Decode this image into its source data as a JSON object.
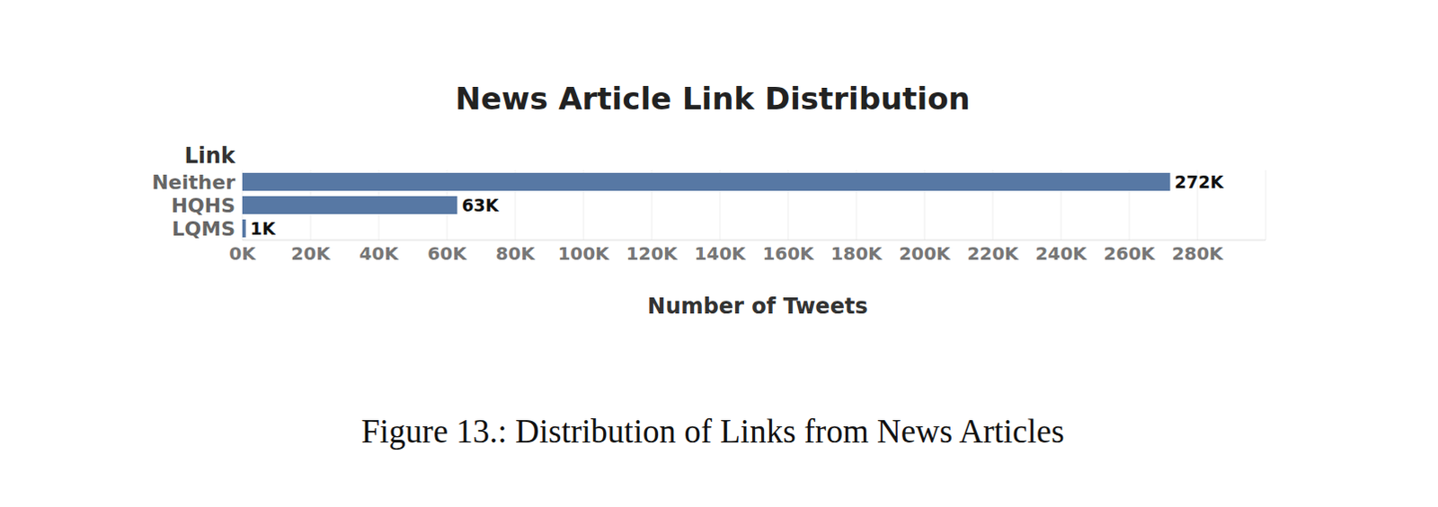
{
  "chart_data": {
    "type": "bar",
    "title": "News Article Link Distribution",
    "y_label": "Link",
    "x_label": "Number of Tweets",
    "caption": "Figure 13.: Distribution of Links from News Articles",
    "orientation": "horizontal",
    "categories": [
      "Neither",
      "HQHS",
      "LQMS"
    ],
    "values": [
      272000,
      63000,
      1000
    ],
    "value_labels": [
      "272K",
      "63K",
      "1K"
    ],
    "data_labels": true,
    "color": "#5778a4",
    "xlim": [
      0,
      300000
    ],
    "xticks": [
      {
        "value": 0,
        "label": "0K"
      },
      {
        "value": 20000,
        "label": "20K"
      },
      {
        "value": 40000,
        "label": "40K"
      },
      {
        "value": 60000,
        "label": "60K"
      },
      {
        "value": 80000,
        "label": "80K"
      },
      {
        "value": 100000,
        "label": "100K"
      },
      {
        "value": 120000,
        "label": "120K"
      },
      {
        "value": 140000,
        "label": "140K"
      },
      {
        "value": 160000,
        "label": "160K"
      },
      {
        "value": 180000,
        "label": "180K"
      },
      {
        "value": 200000,
        "label": "200K"
      },
      {
        "value": 220000,
        "label": "220K"
      },
      {
        "value": 240000,
        "label": "240K"
      },
      {
        "value": 260000,
        "label": "260K"
      },
      {
        "value": 280000,
        "label": "280K"
      }
    ],
    "grid": true
  }
}
